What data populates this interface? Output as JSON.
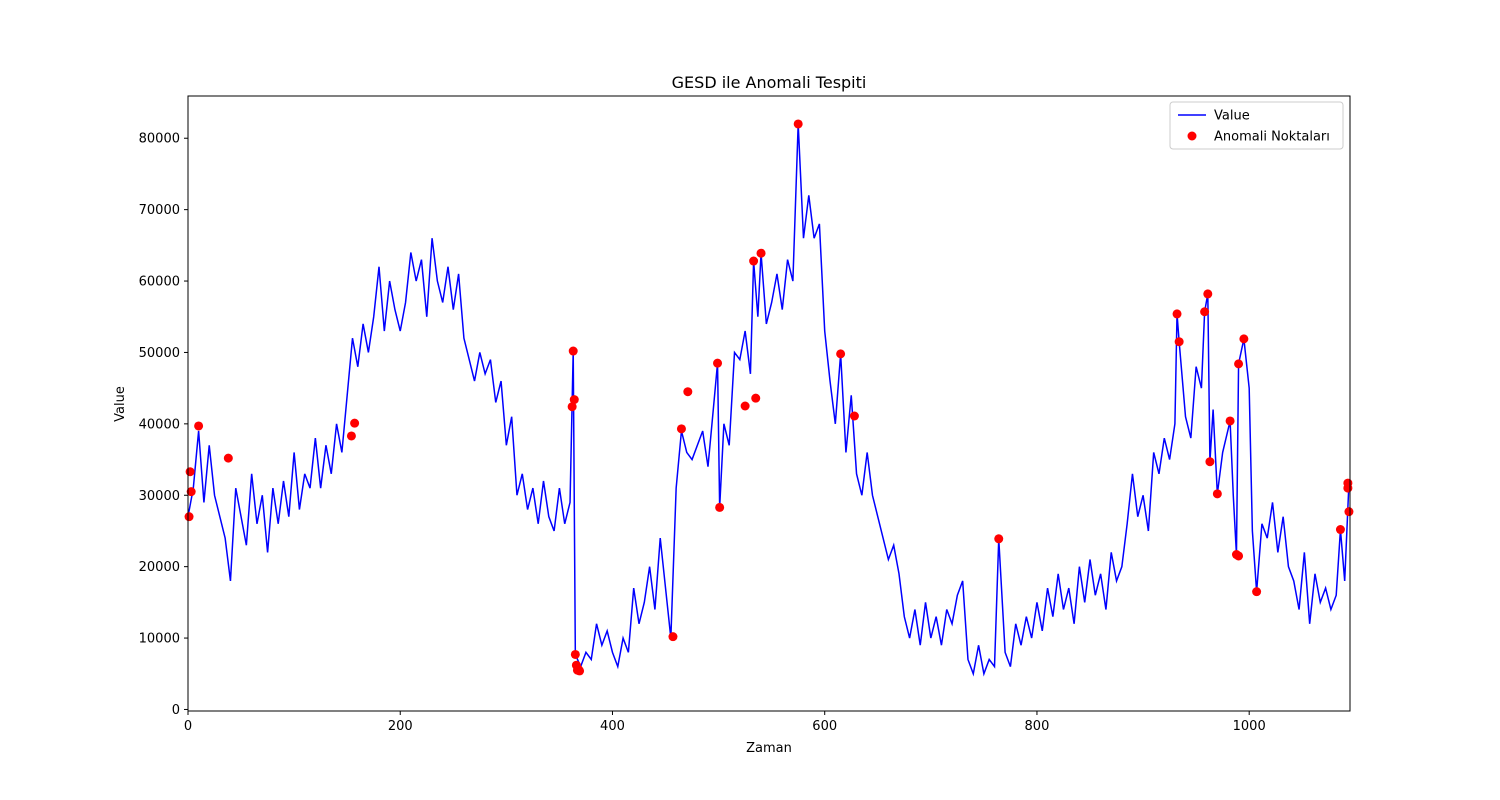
{
  "chart_data": {
    "type": "line",
    "title": "GESD ile Anomali Tespiti",
    "x_label": "Zaman",
    "y_label": "Value",
    "xlim": [
      0,
      1095
    ],
    "ylim": [
      -215,
      85915
    ],
    "xticks": [
      0,
      200,
      400,
      600,
      800,
      1000
    ],
    "yticks": [
      0,
      10000,
      20000,
      30000,
      40000,
      50000,
      60000,
      70000,
      80000
    ],
    "legend": "upper right",
    "series": [
      {
        "name": "Value",
        "type": "line",
        "color": "#0000ff",
        "x": [
          0,
          5,
          10,
          15,
          20,
          25,
          30,
          35,
          40,
          45,
          50,
          55,
          60,
          65,
          70,
          75,
          80,
          85,
          90,
          95,
          100,
          105,
          110,
          115,
          120,
          125,
          130,
          135,
          140,
          145,
          150,
          155,
          160,
          165,
          170,
          175,
          180,
          185,
          190,
          195,
          200,
          205,
          210,
          215,
          220,
          225,
          230,
          235,
          240,
          245,
          250,
          255,
          260,
          265,
          270,
          275,
          280,
          285,
          290,
          295,
          300,
          305,
          310,
          315,
          320,
          325,
          330,
          335,
          340,
          345,
          350,
          355,
          360,
          363,
          365,
          370,
          375,
          380,
          385,
          390,
          395,
          400,
          405,
          410,
          415,
          420,
          425,
          430,
          435,
          440,
          445,
          450,
          455,
          460,
          465,
          470,
          475,
          480,
          485,
          490,
          495,
          499,
          501,
          505,
          510,
          515,
          520,
          525,
          530,
          533,
          537,
          540,
          545,
          550,
          555,
          560,
          565,
          570,
          575,
          580,
          585,
          590,
          595,
          600,
          605,
          610,
          615,
          620,
          625,
          630,
          635,
          640,
          645,
          650,
          655,
          660,
          665,
          670,
          675,
          680,
          685,
          690,
          695,
          700,
          705,
          710,
          715,
          720,
          725,
          730,
          735,
          740,
          745,
          750,
          755,
          760,
          764,
          770,
          775,
          780,
          785,
          790,
          795,
          800,
          805,
          810,
          815,
          820,
          825,
          830,
          835,
          840,
          845,
          850,
          855,
          860,
          865,
          870,
          875,
          880,
          885,
          890,
          895,
          900,
          905,
          910,
          915,
          920,
          925,
          930,
          932,
          934,
          940,
          945,
          950,
          955,
          958,
          961,
          963,
          966,
          970,
          975,
          982,
          985,
          988,
          990,
          995,
          1000,
          1003,
          1007,
          1012,
          1017,
          1022,
          1027,
          1032,
          1037,
          1042,
          1047,
          1052,
          1057,
          1062,
          1067,
          1072,
          1077,
          1082,
          1086,
          1090,
          1094
        ],
        "values": [
          27000,
          31000,
          39000,
          29000,
          37000,
          30000,
          27000,
          24000,
          18000,
          31000,
          27000,
          23000,
          33000,
          26000,
          30000,
          22000,
          31000,
          26000,
          32000,
          27000,
          36000,
          28000,
          33000,
          31000,
          38000,
          31000,
          37000,
          33000,
          40000,
          36000,
          44000,
          52000,
          48000,
          54000,
          50000,
          55000,
          62000,
          53000,
          60000,
          56000,
          53000,
          57000,
          64000,
          60000,
          63000,
          55000,
          66000,
          60000,
          57000,
          62000,
          56000,
          61000,
          52000,
          49000,
          46000,
          50000,
          47000,
          49000,
          43000,
          46000,
          37000,
          41000,
          30000,
          33000,
          28000,
          31000,
          26000,
          32000,
          27000,
          25000,
          31000,
          26000,
          29000,
          50200,
          7700,
          6000,
          8000,
          7000,
          12000,
          9000,
          11000,
          8000,
          6000,
          10000,
          8000,
          17000,
          12000,
          15000,
          20000,
          14000,
          24000,
          17000,
          10000,
          31000,
          39000,
          36000,
          35000,
          37000,
          39000,
          34000,
          42000,
          48500,
          28300,
          40000,
          37000,
          50000,
          49000,
          53000,
          47000,
          62800,
          55000,
          63900,
          54000,
          57000,
          61000,
          56000,
          63000,
          60000,
          82000,
          66000,
          72000,
          66000,
          68000,
          53000,
          46000,
          40000,
          49800,
          36000,
          44000,
          33000,
          30000,
          36000,
          30000,
          27000,
          24000,
          21000,
          23000,
          19000,
          13000,
          10000,
          14000,
          9000,
          15000,
          10000,
          13000,
          9000,
          14000,
          12000,
          16000,
          18000,
          7000,
          5000,
          9000,
          5000,
          7000,
          6000,
          23900,
          8000,
          6000,
          12000,
          9000,
          13000,
          10000,
          15000,
          11000,
          17000,
          13000,
          19000,
          14000,
          17000,
          12000,
          20000,
          15000,
          21000,
          16000,
          19000,
          14000,
          22000,
          18000,
          20000,
          26000,
          33000,
          27000,
          30000,
          25000,
          36000,
          33000,
          38000,
          35000,
          40000,
          55400,
          51500,
          41000,
          38000,
          48000,
          45000,
          55700,
          58200,
          34700,
          42000,
          30200,
          36000,
          40400,
          30000,
          21700,
          48400,
          51900,
          45000,
          25000,
          16500,
          26000,
          24000,
          29000,
          22000,
          27000,
          20000,
          18000,
          14000,
          22000,
          12000,
          19000,
          15000,
          17000,
          14000,
          16000,
          25200,
          18000,
          31700
        ]
      },
      {
        "name": "Anomali Noktaları",
        "type": "scatter",
        "color": "#ff0000",
        "x": [
          1,
          2,
          3,
          10,
          38,
          154,
          157,
          362,
          363,
          364,
          365,
          366,
          367,
          368,
          369,
          457,
          465,
          471,
          499,
          501,
          525,
          533,
          535,
          540,
          575,
          615,
          628,
          764,
          932,
          934,
          958,
          961,
          963,
          970,
          982,
          988,
          990,
          990,
          995,
          1007,
          1086,
          1093,
          1093,
          1094
        ],
        "values": [
          27000,
          33300,
          30500,
          39700,
          35200,
          38300,
          40100,
          42400,
          50200,
          43400,
          7700,
          6200,
          5500,
          5600,
          5400,
          10200,
          39300,
          44500,
          48500,
          28300,
          42500,
          62800,
          43600,
          63900,
          82000,
          49800,
          41100,
          23900,
          55400,
          51500,
          55700,
          58200,
          34700,
          30200,
          40400,
          21700,
          21500,
          48400,
          51900,
          16500,
          25200,
          31700,
          31000,
          27700
        ]
      }
    ]
  }
}
